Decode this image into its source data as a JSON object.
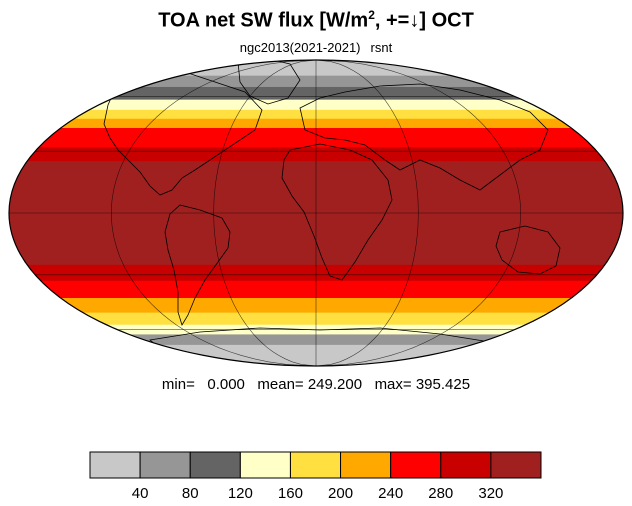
{
  "title": {
    "main": "TOA net SW flux [W/m",
    "sup": "2",
    "rest": ", +=↓]  OCT"
  },
  "subtitle": {
    "dataset": "ngc2013(2021-2021)",
    "variable": "rsnt"
  },
  "stats": {
    "text": "min=   0.000   mean= 249.200   max= 395.425"
  },
  "colorbar": {
    "colors": [
      "#c8c8c8",
      "#969696",
      "#646464",
      "#ffffc8",
      "#ffe040",
      "#ffa800",
      "#ff0000",
      "#c80000",
      "#a02020"
    ],
    "tick_labels": [
      "40",
      "80",
      "120",
      "160",
      "200",
      "240",
      "280",
      "320"
    ]
  },
  "map": {
    "projection": "mollweide",
    "bands_by_latitude": [
      {
        "lat_from": 90,
        "lat_to": 74,
        "color": "#c8c8c8"
      },
      {
        "lat_from": 74,
        "lat_to": 66,
        "color": "#969696"
      },
      {
        "lat_from": 66,
        "lat_to": 58,
        "color": "#646464"
      },
      {
        "lat_from": 58,
        "lat_to": 52,
        "color": "#ffffc8"
      },
      {
        "lat_from": 52,
        "lat_to": 47,
        "color": "#ffe040"
      },
      {
        "lat_from": 47,
        "lat_to": 42,
        "color": "#ffa800"
      },
      {
        "lat_from": 42,
        "lat_to": 32,
        "color": "#ff0000"
      },
      {
        "lat_from": 32,
        "lat_to": 25,
        "color": "#c80000"
      },
      {
        "lat_from": 25,
        "lat_to": -25,
        "color": "#a02020"
      },
      {
        "lat_from": -25,
        "lat_to": -33,
        "color": "#c80000"
      },
      {
        "lat_from": -33,
        "lat_to": -42,
        "color": "#ff0000"
      },
      {
        "lat_from": -42,
        "lat_to": -50,
        "color": "#ffa800"
      },
      {
        "lat_from": -50,
        "lat_to": -57,
        "color": "#ffe040"
      },
      {
        "lat_from": -57,
        "lat_to": -63,
        "color": "#ffffc8"
      },
      {
        "lat_from": -63,
        "lat_to": -70,
        "color": "#969696"
      },
      {
        "lat_from": -70,
        "lat_to": -90,
        "color": "#c8c8c8"
      }
    ],
    "graticule_lats": [
      -60,
      -30,
      0,
      30,
      60
    ],
    "graticule_lons": [
      -120,
      -60,
      0,
      60,
      120
    ]
  }
}
